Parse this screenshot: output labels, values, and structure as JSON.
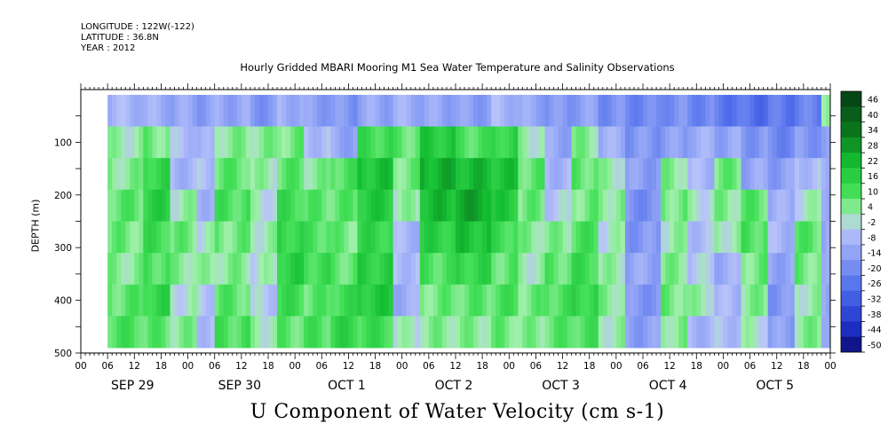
{
  "header": {
    "longitude": "LONGITUDE : 122W(-122)",
    "latitude": "LATITUDE : 36.8N",
    "year": "YEAR : 2012"
  },
  "chart_data": {
    "type": "heatmap",
    "title": "Hourly Gridded MBARI Mooring M1 Sea Water Temperature and Salinity Observations",
    "xlabel": "U Component of Water Velocity (cm s-1)",
    "ylabel": "DEPTH (m)",
    "x_time_start": "SEP 29 00",
    "x_time_end": "OCT 6 00",
    "x_hour_ticks": [
      "00",
      "06",
      "12",
      "18",
      "00",
      "06",
      "12",
      "18",
      "00",
      "06",
      "12",
      "18",
      "00",
      "06",
      "12",
      "18",
      "00",
      "06",
      "12",
      "18",
      "00",
      "06",
      "12",
      "18",
      "00",
      "06",
      "12",
      "18",
      "00"
    ],
    "x_day_labels": [
      "SEP 29",
      "SEP 30",
      "OCT  1",
      "OCT  2",
      "OCT  3",
      "OCT  4",
      "OCT  5"
    ],
    "ylim": [
      500,
      0
    ],
    "y_ticks": [
      100,
      200,
      300,
      400,
      500
    ],
    "data_depth_range": [
      10,
      490
    ],
    "data_time_start_hours": 6,
    "colorbar": {
      "levels": [
        46,
        40,
        34,
        28,
        22,
        16,
        10,
        4,
        -2,
        -8,
        -14,
        -20,
        -26,
        -32,
        -38,
        -44,
        -50
      ],
      "range": [
        -50,
        52
      ]
    },
    "time_bands": [
      {
        "start_h": 6,
        "end_h": 14,
        "profile": [
          -6,
          4,
          6,
          10,
          8,
          6,
          10,
          12
        ]
      },
      {
        "start_h": 14,
        "end_h": 20,
        "profile": [
          -8,
          8,
          16,
          18,
          14,
          12,
          16,
          10
        ]
      },
      {
        "start_h": 20,
        "end_h": 26,
        "profile": [
          -10,
          -4,
          -6,
          4,
          8,
          6,
          2,
          6
        ]
      },
      {
        "start_h": 26,
        "end_h": 30,
        "profile": [
          -12,
          -8,
          -4,
          -6,
          2,
          4,
          -2,
          -4
        ]
      },
      {
        "start_h": 30,
        "end_h": 38,
        "profile": [
          -10,
          6,
          10,
          12,
          8,
          6,
          10,
          12
        ]
      },
      {
        "start_h": 38,
        "end_h": 44,
        "profile": [
          -14,
          6,
          4,
          2,
          4,
          2,
          -2,
          4
        ]
      },
      {
        "start_h": 44,
        "end_h": 50,
        "profile": [
          -8,
          8,
          10,
          14,
          16,
          18,
          14,
          10
        ]
      },
      {
        "start_h": 50,
        "end_h": 56,
        "profile": [
          -12,
          -4,
          6,
          10,
          12,
          14,
          10,
          12
        ]
      },
      {
        "start_h": 56,
        "end_h": 62,
        "profile": [
          -14,
          -10,
          12,
          10,
          8,
          10,
          14,
          16
        ]
      },
      {
        "start_h": 62,
        "end_h": 70,
        "profile": [
          -10,
          14,
          22,
          20,
          16,
          18,
          20,
          14
        ]
      },
      {
        "start_h": 70,
        "end_h": 76,
        "profile": [
          -8,
          10,
          8,
          4,
          -6,
          -4,
          -8,
          2
        ]
      },
      {
        "start_h": 76,
        "end_h": 84,
        "profile": [
          -10,
          20,
          26,
          24,
          18,
          12,
          8,
          6
        ]
      },
      {
        "start_h": 84,
        "end_h": 92,
        "profile": [
          -12,
          12,
          24,
          28,
          22,
          16,
          10,
          6
        ]
      },
      {
        "start_h": 92,
        "end_h": 98,
        "profile": [
          -6,
          16,
          22,
          20,
          14,
          10,
          12,
          8
        ]
      },
      {
        "start_h": 98,
        "end_h": 104,
        "profile": [
          -10,
          4,
          10,
          8,
          6,
          4,
          8,
          6
        ]
      },
      {
        "start_h": 104,
        "end_h": 110,
        "profile": [
          -14,
          -10,
          -6,
          -2,
          6,
          10,
          12,
          10
        ]
      },
      {
        "start_h": 110,
        "end_h": 116,
        "profile": [
          -12,
          6,
          10,
          8,
          12,
          14,
          16,
          12
        ]
      },
      {
        "start_h": 116,
        "end_h": 122,
        "profile": [
          -16,
          -8,
          4,
          6,
          2,
          4,
          6,
          4
        ]
      },
      {
        "start_h": 122,
        "end_h": 130,
        "profile": [
          -18,
          -14,
          -12,
          -16,
          -14,
          -10,
          -14,
          -12
        ]
      },
      {
        "start_h": 130,
        "end_h": 136,
        "profile": [
          -16,
          -12,
          6,
          8,
          4,
          6,
          8,
          6
        ]
      },
      {
        "start_h": 136,
        "end_h": 142,
        "profile": [
          -18,
          -8,
          -6,
          2,
          -4,
          -2,
          4,
          -6
        ]
      },
      {
        "start_h": 142,
        "end_h": 148,
        "profile": [
          -22,
          -10,
          8,
          6,
          4,
          -8,
          -6,
          -4
        ]
      },
      {
        "start_h": 148,
        "end_h": 154,
        "profile": [
          -24,
          -14,
          -10,
          10,
          12,
          8,
          6,
          2
        ]
      },
      {
        "start_h": 154,
        "end_h": 160,
        "profile": [
          -22,
          -18,
          -12,
          -8,
          -6,
          -10,
          -14,
          -12
        ]
      },
      {
        "start_h": 160,
        "end_h": 166,
        "profile": [
          -20,
          -14,
          -4,
          2,
          10,
          8,
          4,
          6
        ]
      },
      {
        "start_h": 166,
        "end_h": 168,
        "profile": [
          8,
          -14,
          -10,
          -6,
          -8,
          -12,
          -10,
          -6
        ]
      }
    ]
  }
}
